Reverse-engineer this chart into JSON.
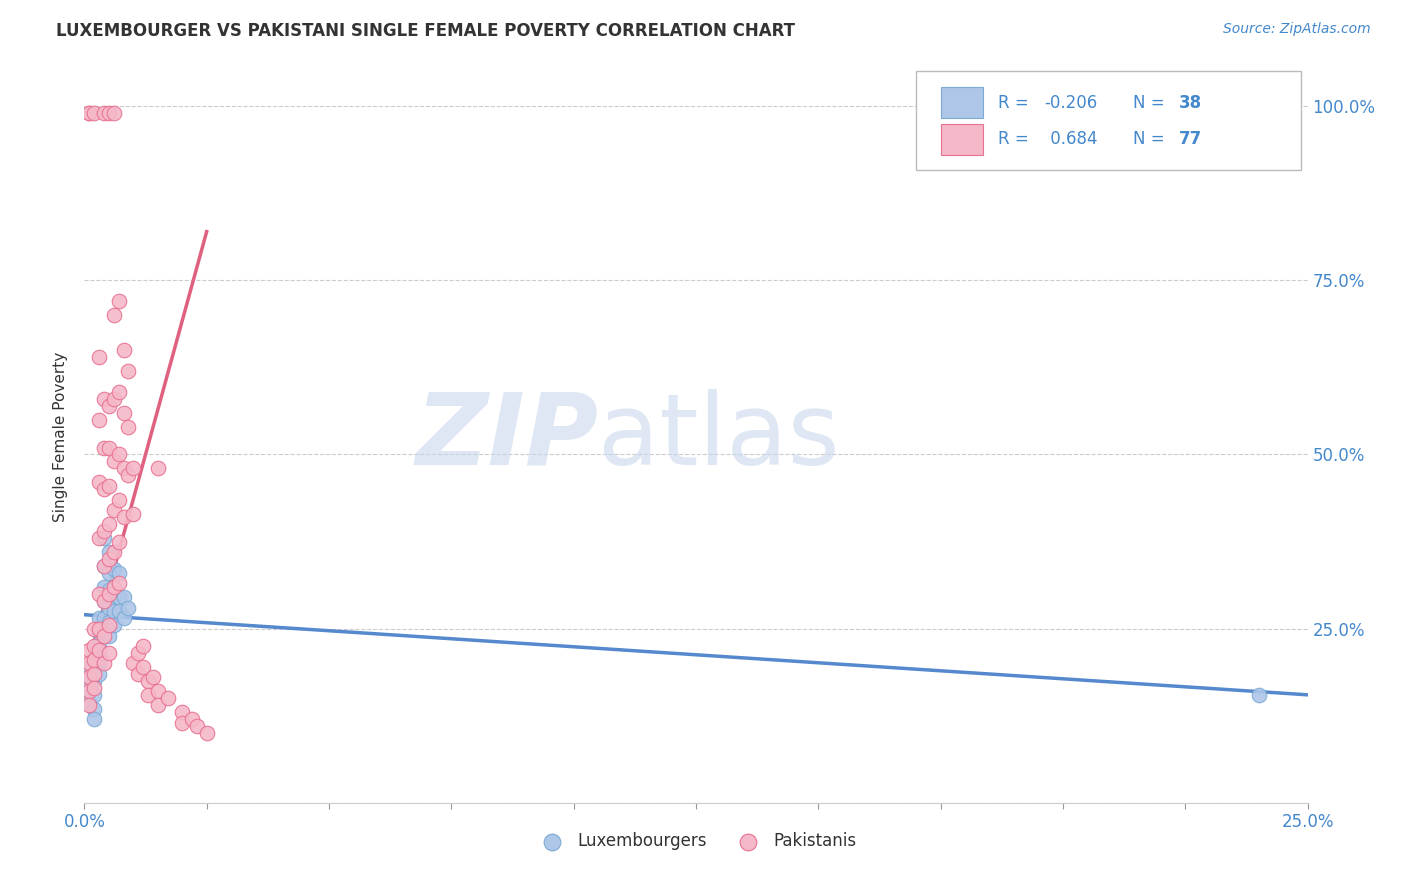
{
  "title": "LUXEMBOURGER VS PAKISTANI SINGLE FEMALE POVERTY CORRELATION CHART",
  "source": "Source: ZipAtlas.com",
  "ylabel": "Single Female Poverty",
  "xlim": [
    0.0,
    0.25
  ],
  "ylim": [
    0.0,
    1.05
  ],
  "watermark_zip": "ZIP",
  "watermark_atlas": "atlas",
  "legend_r_lux": "-0.206",
  "legend_n_lux": "38",
  "legend_r_pak": "0.684",
  "legend_n_pak": "77",
  "lux_color": "#aec6e8",
  "pak_color": "#f5b8c8",
  "lux_edge_color": "#7baad4",
  "pak_edge_color": "#e87090",
  "lux_line_color": "#5588cc",
  "pak_line_color": "#e06080",
  "background_color": "#ffffff",
  "grid_color": "#cccccc",
  "text_color": "#333333",
  "blue_label_color": "#4488cc",
  "lux_points": [
    [
      0.001,
      0.195
    ],
    [
      0.001,
      0.175
    ],
    [
      0.001,
      0.16
    ],
    [
      0.001,
      0.145
    ],
    [
      0.002,
      0.21
    ],
    [
      0.002,
      0.175
    ],
    [
      0.002,
      0.155
    ],
    [
      0.002,
      0.135
    ],
    [
      0.002,
      0.12
    ],
    [
      0.003,
      0.265
    ],
    [
      0.003,
      0.245
    ],
    [
      0.003,
      0.23
    ],
    [
      0.003,
      0.215
    ],
    [
      0.003,
      0.2
    ],
    [
      0.003,
      0.185
    ],
    [
      0.004,
      0.38
    ],
    [
      0.004,
      0.34
    ],
    [
      0.004,
      0.31
    ],
    [
      0.004,
      0.29
    ],
    [
      0.004,
      0.265
    ],
    [
      0.004,
      0.25
    ],
    [
      0.005,
      0.36
    ],
    [
      0.005,
      0.33
    ],
    [
      0.005,
      0.305
    ],
    [
      0.005,
      0.28
    ],
    [
      0.005,
      0.26
    ],
    [
      0.005,
      0.24
    ],
    [
      0.006,
      0.335
    ],
    [
      0.006,
      0.3
    ],
    [
      0.006,
      0.275
    ],
    [
      0.006,
      0.255
    ],
    [
      0.007,
      0.33
    ],
    [
      0.007,
      0.295
    ],
    [
      0.007,
      0.275
    ],
    [
      0.008,
      0.295
    ],
    [
      0.008,
      0.265
    ],
    [
      0.009,
      0.28
    ],
    [
      0.24,
      0.155
    ]
  ],
  "pak_points": [
    [
      0.001,
      0.99
    ],
    [
      0.001,
      0.99
    ],
    [
      0.002,
      0.99
    ],
    [
      0.004,
      0.99
    ],
    [
      0.005,
      0.99
    ],
    [
      0.006,
      0.99
    ],
    [
      0.001,
      0.22
    ],
    [
      0.001,
      0.2
    ],
    [
      0.001,
      0.18
    ],
    [
      0.001,
      0.16
    ],
    [
      0.001,
      0.14
    ],
    [
      0.002,
      0.25
    ],
    [
      0.002,
      0.225
    ],
    [
      0.002,
      0.205
    ],
    [
      0.002,
      0.185
    ],
    [
      0.002,
      0.165
    ],
    [
      0.003,
      0.64
    ],
    [
      0.003,
      0.55
    ],
    [
      0.003,
      0.46
    ],
    [
      0.003,
      0.38
    ],
    [
      0.003,
      0.3
    ],
    [
      0.003,
      0.25
    ],
    [
      0.003,
      0.22
    ],
    [
      0.004,
      0.58
    ],
    [
      0.004,
      0.51
    ],
    [
      0.004,
      0.45
    ],
    [
      0.004,
      0.39
    ],
    [
      0.004,
      0.34
    ],
    [
      0.004,
      0.29
    ],
    [
      0.004,
      0.24
    ],
    [
      0.004,
      0.2
    ],
    [
      0.005,
      0.57
    ],
    [
      0.005,
      0.51
    ],
    [
      0.005,
      0.455
    ],
    [
      0.005,
      0.4
    ],
    [
      0.005,
      0.35
    ],
    [
      0.005,
      0.3
    ],
    [
      0.005,
      0.255
    ],
    [
      0.005,
      0.215
    ],
    [
      0.006,
      0.7
    ],
    [
      0.006,
      0.58
    ],
    [
      0.006,
      0.49
    ],
    [
      0.006,
      0.42
    ],
    [
      0.006,
      0.36
    ],
    [
      0.006,
      0.31
    ],
    [
      0.007,
      0.72
    ],
    [
      0.007,
      0.59
    ],
    [
      0.007,
      0.5
    ],
    [
      0.007,
      0.435
    ],
    [
      0.007,
      0.375
    ],
    [
      0.007,
      0.315
    ],
    [
      0.008,
      0.65
    ],
    [
      0.008,
      0.56
    ],
    [
      0.008,
      0.48
    ],
    [
      0.008,
      0.41
    ],
    [
      0.009,
      0.62
    ],
    [
      0.009,
      0.54
    ],
    [
      0.009,
      0.47
    ],
    [
      0.01,
      0.48
    ],
    [
      0.01,
      0.415
    ],
    [
      0.01,
      0.2
    ],
    [
      0.011,
      0.215
    ],
    [
      0.011,
      0.185
    ],
    [
      0.012,
      0.225
    ],
    [
      0.012,
      0.195
    ],
    [
      0.013,
      0.175
    ],
    [
      0.013,
      0.155
    ],
    [
      0.014,
      0.18
    ],
    [
      0.015,
      0.16
    ],
    [
      0.015,
      0.14
    ],
    [
      0.017,
      0.15
    ],
    [
      0.02,
      0.13
    ],
    [
      0.02,
      0.115
    ],
    [
      0.022,
      0.12
    ],
    [
      0.023,
      0.11
    ],
    [
      0.025,
      0.1
    ],
    [
      0.015,
      0.48
    ]
  ],
  "lux_line": {
    "x0": 0.0,
    "x1": 0.25,
    "y0": 0.27,
    "y1": 0.155
  },
  "pak_line": {
    "x0": 0.0,
    "x1": 0.025,
    "y0": 0.18,
    "y1": 0.82
  }
}
